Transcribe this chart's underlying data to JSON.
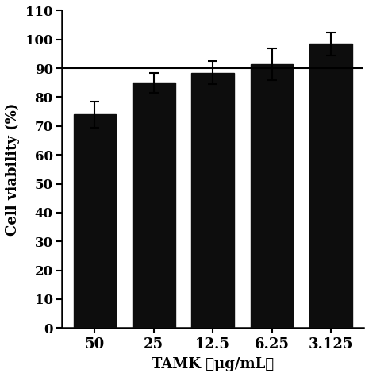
{
  "categories": [
    "50",
    "25",
    "12.5",
    "6.25",
    "3.125"
  ],
  "values": [
    74.0,
    85.0,
    88.5,
    91.5,
    98.5
  ],
  "errors": [
    4.5,
    3.5,
    4.0,
    5.5,
    4.0
  ],
  "bar_color": "#0d0d0d",
  "reference_line_y": 90,
  "reference_line_color": "#000000",
  "xlabel": "TAMK （μg/mL）",
  "ylabel": "Cell viability (%)",
  "ylim": [
    0,
    110
  ],
  "yticks": [
    0,
    10,
    20,
    30,
    40,
    50,
    60,
    70,
    80,
    90,
    100,
    110
  ],
  "bar_width": 0.72,
  "error_capsize": 3,
  "error_linewidth": 1.5,
  "background_color": "#ffffff"
}
